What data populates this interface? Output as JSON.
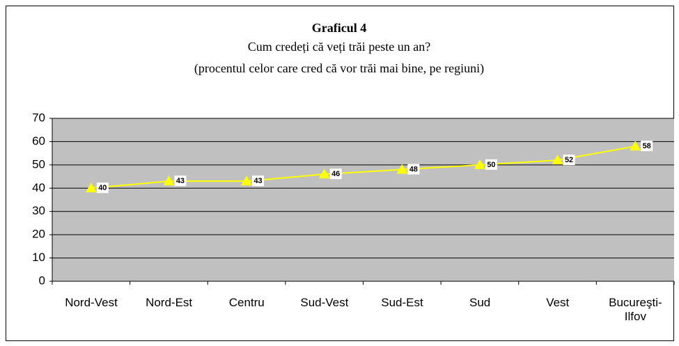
{
  "chart_data": {
    "type": "line",
    "title": "Graficul 4",
    "subtitle": [
      "Cum credeți că veți trăi peste un an?",
      "(procentul celor care cred că vor trăi mai bine, pe regiuni)"
    ],
    "categories": [
      "Nord-Vest",
      "Nord-Est",
      "Centru",
      "Sud-Vest",
      "Sud-Est",
      "Sud",
      "Vest",
      "Bucureşti-\nIlfov"
    ],
    "series": [
      {
        "color": "#ffff00",
        "values": [
          40,
          43,
          43,
          46,
          48,
          50,
          52,
          58
        ]
      }
    ],
    "ylim": [
      0,
      70
    ],
    "yticks": [
      0,
      10,
      20,
      30,
      40,
      50,
      60,
      70
    ],
    "grid": true,
    "data_labels": true
  }
}
